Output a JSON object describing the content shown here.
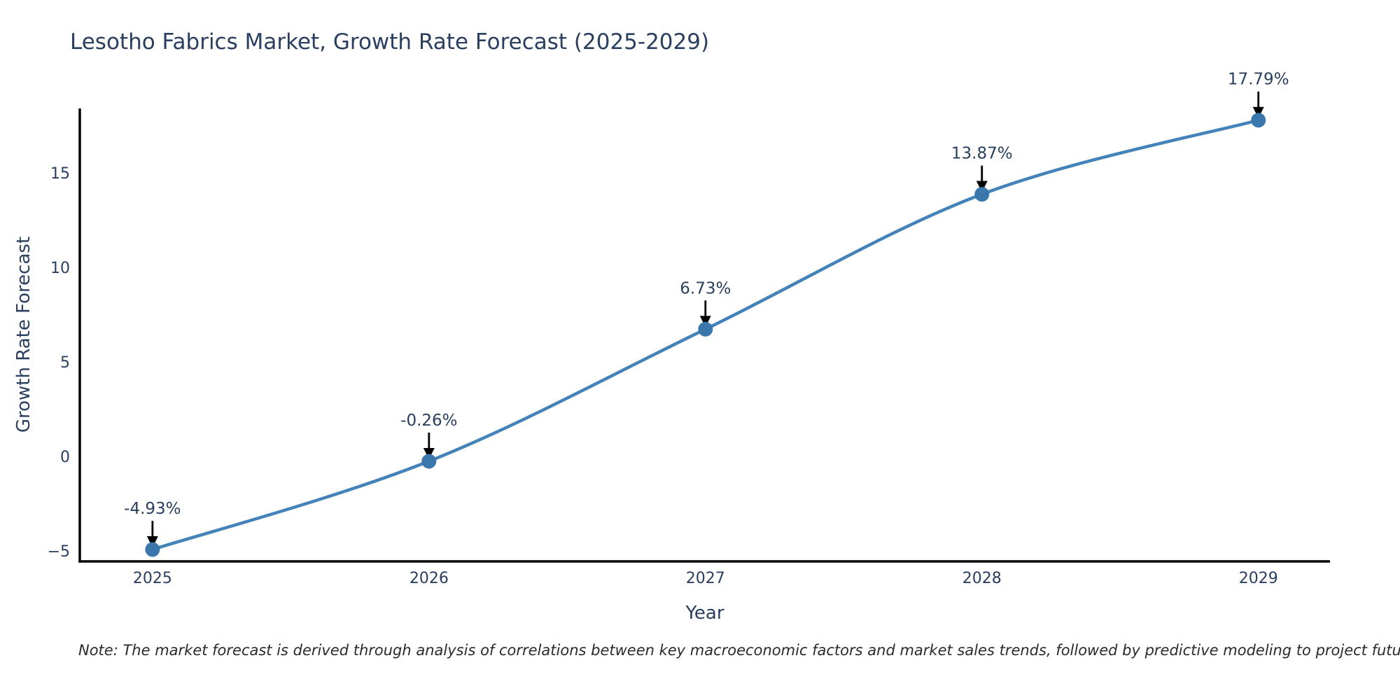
{
  "title": "Lesotho Fabrics Market, Growth Rate Forecast (2025-2029)",
  "note": "Note: The market forecast is derived through analysis of correlations between key macroeconomic factors and market sales trends, followed by predictive modeling to project future sales",
  "chart_data": {
    "type": "line",
    "title": "Lesotho Fabrics Market, Growth Rate Forecast (2025-2029)",
    "xlabel": "Year",
    "ylabel": "Growth Rate Forecast",
    "x": [
      2025,
      2026,
      2027,
      2028,
      2029
    ],
    "x_tick_labels": [
      "2025",
      "2026",
      "2027",
      "2028",
      "2029"
    ],
    "series": [
      {
        "name": "Growth Rate Forecast",
        "values": [
          -4.93,
          -0.26,
          6.73,
          13.87,
          17.79
        ]
      }
    ],
    "point_labels": [
      "-4.93%",
      "-0.26%",
      "6.73%",
      "13.87%",
      "17.79%"
    ],
    "y_tick_values": [
      -5,
      0,
      5,
      10,
      15
    ],
    "y_tick_labels": [
      "−5",
      "0",
      "5",
      "10",
      "15"
    ],
    "xlim": [
      2024.737,
      2029.259
    ],
    "ylim": [
      -5.56,
      18.41
    ],
    "line_shape": "spline",
    "grid": false,
    "legend_position": "none",
    "annotation_arrow": "down",
    "colors": {
      "line": "#4483b9",
      "marker": "#3a77ad",
      "axis": "#000000",
      "tick_text": "#2a3f5f",
      "annotation_text": "#2a3f5f",
      "arrow": "#000000",
      "note_text": "#2b2b2b",
      "background": "#ffffff"
    }
  }
}
